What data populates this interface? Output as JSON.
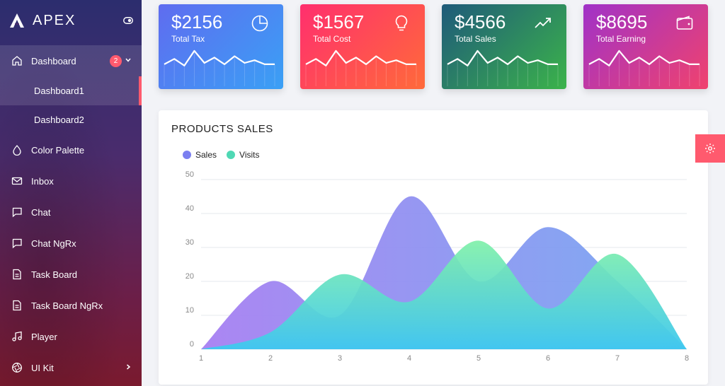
{
  "app": {
    "name": "APEX"
  },
  "sidebar": {
    "items": [
      {
        "name": "dashboard",
        "label": "Dashboard",
        "badge": "2",
        "icon": "home-icon"
      },
      {
        "name": "dashboard1",
        "label": "Dashboard1"
      },
      {
        "name": "dashboard2",
        "label": "Dashboard2"
      },
      {
        "name": "color-palette",
        "label": "Color Palette",
        "icon": "droplet-icon"
      },
      {
        "name": "inbox",
        "label": "Inbox",
        "icon": "mail-icon"
      },
      {
        "name": "chat",
        "label": "Chat",
        "icon": "chat-icon"
      },
      {
        "name": "chat-ngrx",
        "label": "Chat NgRx",
        "icon": "chat-icon"
      },
      {
        "name": "task-board",
        "label": "Task Board",
        "icon": "file-icon"
      },
      {
        "name": "task-board-ngrx",
        "label": "Task Board NgRx",
        "icon": "file-icon"
      },
      {
        "name": "player",
        "label": "Player",
        "icon": "music-icon"
      },
      {
        "name": "ui-kit",
        "label": "UI Kit",
        "icon": "aperture-icon"
      }
    ]
  },
  "cards": [
    {
      "value": "$2156",
      "label": "Total Tax",
      "icon": "pie-chart-icon",
      "color_from": "#5f6cf0",
      "color_to": "#3aa0f5"
    },
    {
      "value": "$1567",
      "label": "Total Cost",
      "icon": "bulb-icon",
      "color_from": "#ff2f6e",
      "color_to": "#ff6a3a"
    },
    {
      "value": "$4566",
      "label": "Total Sales",
      "icon": "trending-up-icon",
      "color_from": "#1f5a7a",
      "color_to": "#3bb34a"
    },
    {
      "value": "$8695",
      "label": "Total Earning",
      "icon": "wallet-icon",
      "color_from": "#a032c8",
      "color_to": "#f0426e"
    }
  ],
  "panel": {
    "title": "PRODUCTS SALES"
  },
  "chart_data": {
    "type": "area",
    "title": "PRODUCTS SALES",
    "x": [
      1,
      2,
      3,
      4,
      5,
      6,
      7,
      8
    ],
    "xlim": [
      1,
      8
    ],
    "ylim": [
      0,
      50
    ],
    "yticks": [
      0,
      10,
      20,
      30,
      40,
      50
    ],
    "grid": true,
    "legend": "top-left",
    "series": [
      {
        "name": "Sales",
        "values": [
          0,
          20,
          10,
          45,
          20,
          36,
          20,
          0
        ],
        "color": "#7b7ff0"
      },
      {
        "name": "Visits",
        "values": [
          0,
          5,
          22,
          14,
          32,
          12,
          28,
          0
        ],
        "color": "#4fd8b4"
      }
    ]
  }
}
